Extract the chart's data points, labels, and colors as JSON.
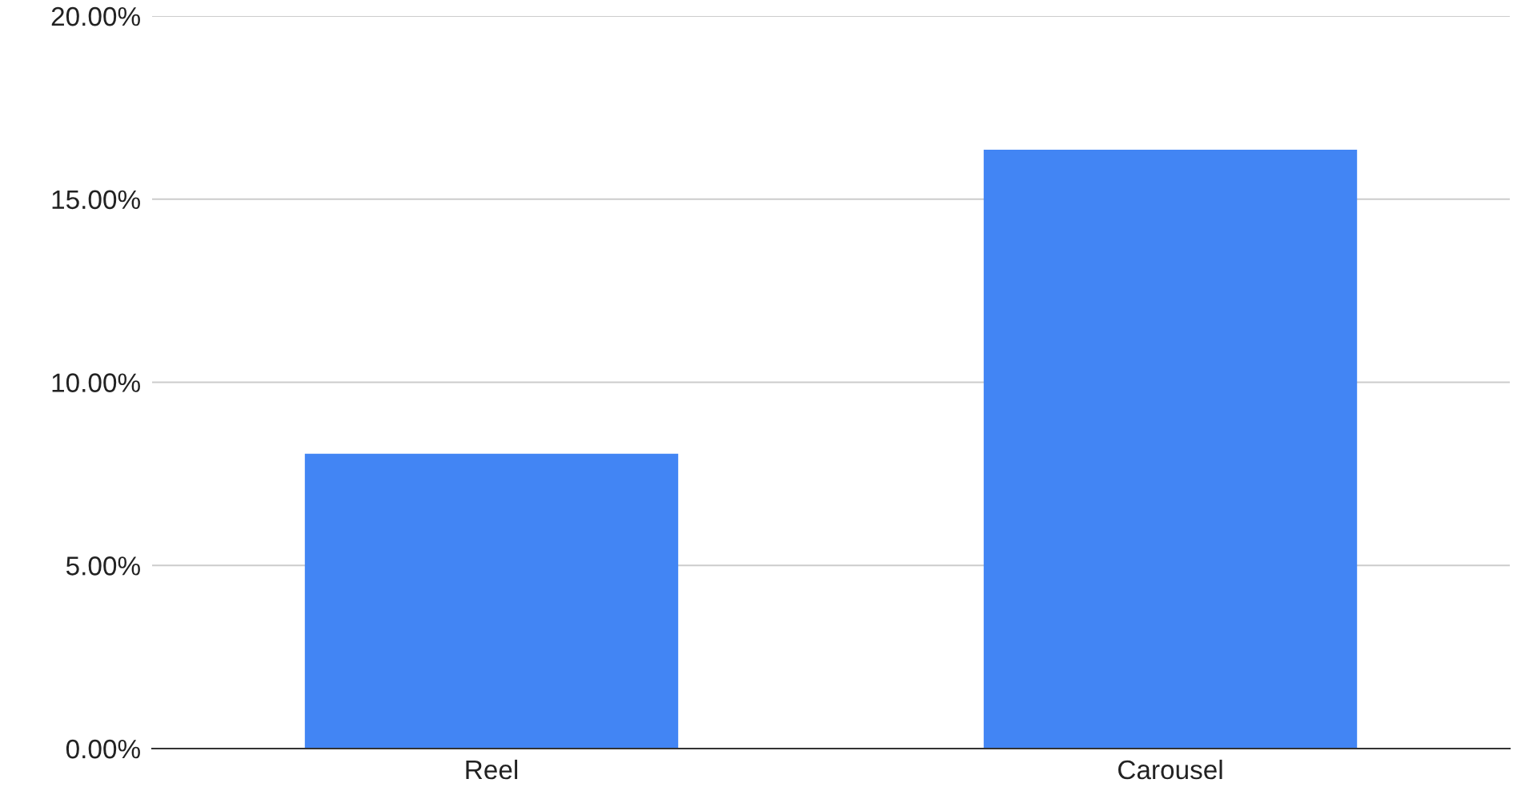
{
  "chart_data": {
    "type": "bar",
    "categories": [
      "Reel",
      "Carousel"
    ],
    "values": [
      8.05,
      16.35
    ],
    "color": "#4285f4",
    "ylim": [
      0,
      20
    ],
    "yticks": [
      {
        "value": 0,
        "label": "0.00%"
      },
      {
        "value": 5,
        "label": "5.00%"
      },
      {
        "value": 10,
        "label": "10.00%"
      },
      {
        "value": 15,
        "label": "15.00%"
      },
      {
        "value": 20,
        "label": "20.00%"
      }
    ],
    "grid": "y"
  }
}
